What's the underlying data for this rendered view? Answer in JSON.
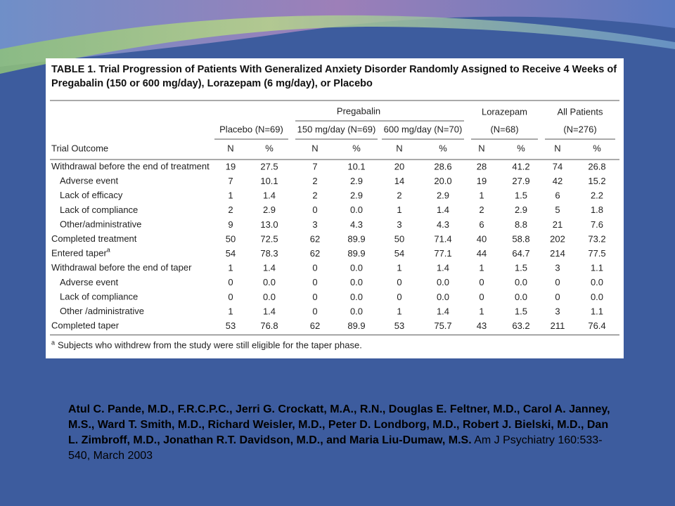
{
  "table": {
    "title_lines": [
      "TABLE 1. Trial Progression of Patients With Generalized Anxiety Disorder Randomly Assigned to Receive 4 Weeks of",
      "Pregabalin (150 or 600 mg/day), Lorazepam (6 mg/day), or Placebo"
    ],
    "group_header": "Pregabalin",
    "columns": [
      {
        "lines": [
          "Placebo (N=69)"
        ]
      },
      {
        "lines": [
          "150 mg/day (N=69)"
        ]
      },
      {
        "lines": [
          "600 mg/day (N=70)"
        ]
      },
      {
        "lines": [
          "Lorazepam",
          "(N=68)"
        ]
      },
      {
        "lines": [
          "All Patients",
          "(N=276)"
        ]
      }
    ],
    "row_header": "Trial Outcome",
    "subcolumns": [
      "N",
      "%"
    ],
    "rows": [
      {
        "label": "Withdrawal before the end of treatment",
        "sub": false,
        "cells": [
          "19",
          "27.5",
          "7",
          "10.1",
          "20",
          "28.6",
          "28",
          "41.2",
          "74",
          "26.8"
        ]
      },
      {
        "label": "Adverse event",
        "sub": true,
        "cells": [
          "7",
          "10.1",
          "2",
          "2.9",
          "14",
          "20.0",
          "19",
          "27.9",
          "42",
          "15.2"
        ]
      },
      {
        "label": "Lack of efficacy",
        "sub": true,
        "cells": [
          "1",
          "1.4",
          "2",
          "2.9",
          "2",
          "2.9",
          "1",
          "1.5",
          "6",
          "2.2"
        ]
      },
      {
        "label": "Lack of compliance",
        "sub": true,
        "cells": [
          "2",
          "2.9",
          "0",
          "0.0",
          "1",
          "1.4",
          "2",
          "2.9",
          "5",
          "1.8"
        ]
      },
      {
        "label": "Other/administrative",
        "sub": true,
        "cells": [
          "9",
          "13.0",
          "3",
          "4.3",
          "3",
          "4.3",
          "6",
          "8.8",
          "21",
          "7.6"
        ]
      },
      {
        "label": "Completed treatment",
        "sub": false,
        "cells": [
          "50",
          "72.5",
          "62",
          "89.9",
          "50",
          "71.4",
          "40",
          "58.8",
          "202",
          "73.2"
        ]
      },
      {
        "label": "Entered taper",
        "note": "a",
        "sub": false,
        "cells": [
          "54",
          "78.3",
          "62",
          "89.9",
          "54",
          "77.1",
          "44",
          "64.7",
          "214",
          "77.5"
        ]
      },
      {
        "label": "Withdrawal before the end of taper",
        "sub": false,
        "cells": [
          "1",
          "1.4",
          "0",
          "0.0",
          "1",
          "1.4",
          "1",
          "1.5",
          "3",
          "1.1"
        ]
      },
      {
        "label": "Adverse event",
        "sub": true,
        "cells": [
          "0",
          "0.0",
          "0",
          "0.0",
          "0",
          "0.0",
          "0",
          "0.0",
          "0",
          "0.0"
        ]
      },
      {
        "label": "Lack of compliance",
        "sub": true,
        "cells": [
          "0",
          "0.0",
          "0",
          "0.0",
          "0",
          "0.0",
          "0",
          "0.0",
          "0",
          "0.0"
        ]
      },
      {
        "label": "Other /administrative",
        "sub": true,
        "cells": [
          "1",
          "1.4",
          "0",
          "0.0",
          "1",
          "1.4",
          "1",
          "1.5",
          "3",
          "1.1"
        ]
      },
      {
        "label": "Completed taper",
        "sub": false,
        "cells": [
          "53",
          "76.8",
          "62",
          "89.9",
          "53",
          "75.7",
          "43",
          "63.2",
          "211",
          "76.4"
        ]
      }
    ],
    "footnote": {
      "marker": "a",
      "text": "Subjects who withdrew from the study were still eligible for the taper phase."
    }
  },
  "citation": {
    "authors": "Atul C. Pande, M.D., F.R.C.P.C., Jerri G. Crockatt, M.A., R.N., Douglas E. Feltner, M.D., Carol A. Janney, M.S., Ward T. Smith, M.D., Richard Weisler, M.D., Peter D. Londborg, M.D., Robert J. Bielski, M.D., Dan L. Zimbroff, M.D., Jonathan R.T. Davidson, M.D., and Maria Liu-Dumaw, M.S.",
    "source": "Am J Psychiatry 160:533-540, March 2003"
  }
}
